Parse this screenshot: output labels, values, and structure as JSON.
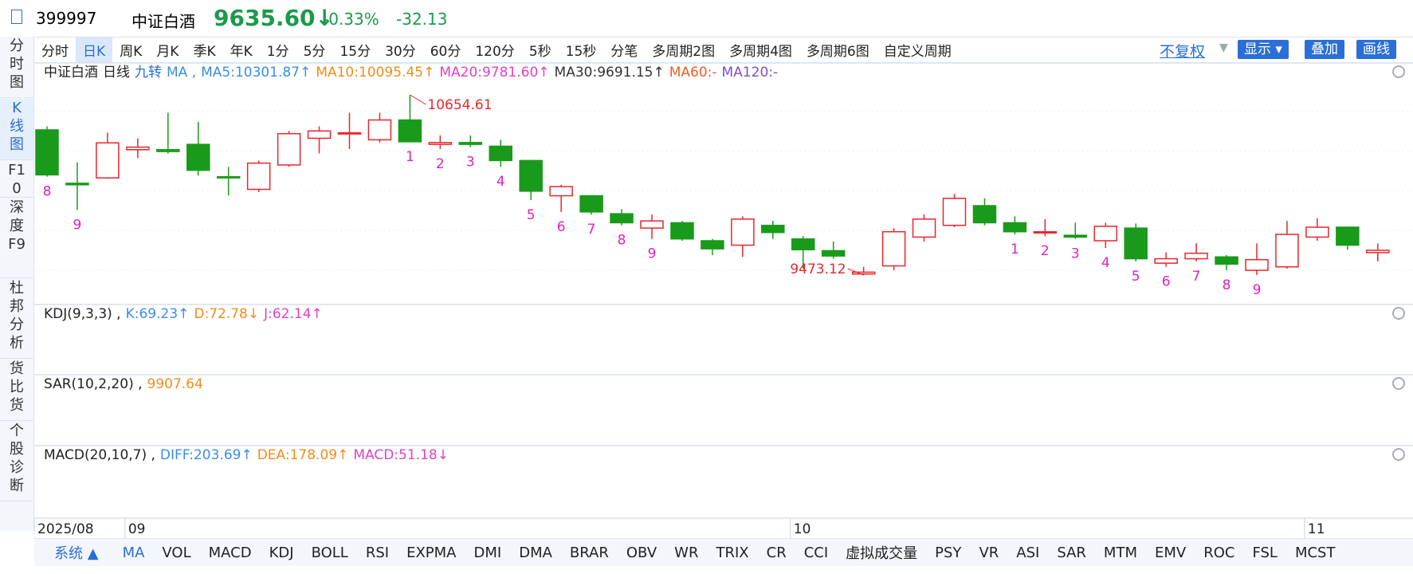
{
  "header": {
    "code": "399997",
    "name": "中证白酒",
    "price": "9635.60↓",
    "change_pct": "-0.33%",
    "change": "-32.13"
  },
  "side_tabs": [
    "分时图",
    "K线图",
    "F10",
    "深度F9",
    "杜邦分析",
    "货比货",
    "个股诊断"
  ],
  "period_tabs": [
    "分时",
    "日K",
    "周K",
    "月K",
    "季K",
    "年K",
    "1分",
    "5分",
    "15分",
    "30分",
    "60分",
    "120分",
    "5秒",
    "15秒",
    "分笔",
    "多周期2图",
    "多周期4图",
    "多周期6图",
    "自定义周期"
  ],
  "right_controls": {
    "adjust": "不复权",
    "show": "显示",
    "overlay": "叠加",
    "draw": "画线"
  },
  "main_legend": {
    "name": "中证白酒",
    "period": "日线",
    "td": "九转",
    "ma": "MA ,",
    "items": [
      {
        "text": "MA5:10301.87↑",
        "color": "#3a8ee6"
      },
      {
        "text": "MA10:10095.45↑",
        "color": "#f08c1a"
      },
      {
        "text": "MA20:9781.60↑",
        "color": "#e040c8"
      },
      {
        "text": "MA30:9691.15↑",
        "color": "#333333"
      },
      {
        "text": "MA60:-",
        "color": "#f05a28"
      },
      {
        "text": "MA120:-",
        "color": "#7a4fc8"
      }
    ]
  },
  "chart_data": {
    "type": "candlestick",
    "up_color": "#e8262b",
    "down_color": "#1a9a1a",
    "open": [
      10425,
      10075,
      10110,
      10295,
      10295,
      10330,
      10118,
      10035,
      10195,
      10370,
      10400,
      10360,
      10490,
      10330,
      10342,
      10318,
      10224,
      9993,
      9993,
      9875,
      9781,
      9816,
      9698,
      9669,
      9799,
      9710,
      9633,
      9480,
      9533,
      9722,
      9799,
      9928,
      9816,
      9752,
      9734,
      9698,
      9781,
      9551,
      9580,
      9592,
      9504,
      9527,
      9722,
      9787,
      9620
    ],
    "close": [
      10130,
      10065,
      10340,
      10312,
      10283,
      10160,
      10112,
      10207,
      10400,
      10418,
      10406,
      10490,
      10347,
      10342,
      10330,
      10224,
      10023,
      10053,
      9887,
      9816,
      9828,
      9710,
      9645,
      9840,
      9752,
      9639,
      9598,
      9492,
      9757,
      9840,
      9976,
      9816,
      9757,
      9757,
      9722,
      9793,
      9580,
      9580,
      9616,
      9545,
      9574,
      9740,
      9787,
      9669,
      9635.6
    ],
    "high": [
      10448,
      10212,
      10407,
      10370,
      10537,
      10478,
      10182,
      10224,
      10418,
      10448,
      10537,
      10537,
      10654.61,
      10389,
      10389,
      10360,
      10224,
      10065,
      9993,
      9905,
      9870,
      9828,
      9710,
      9858,
      9828,
      9728,
      9693,
      9527,
      9781,
      9870,
      10005,
      9976,
      9858,
      9840,
      9816,
      9816,
      9811,
      9622,
      9681,
      9604,
      9681,
      9828,
      9846,
      9787,
      9680
    ],
    "low": [
      10118,
      9900,
      10105,
      10240,
      10270,
      10125,
      9995,
      10017,
      10183,
      10271,
      10300,
      10342,
      10347,
      10300,
      10312,
      10183,
      9964,
      9887,
      9870,
      9799,
      9710,
      9698,
      9604,
      9592,
      9710,
      9515,
      9580,
      9473.12,
      9504,
      9693,
      9787,
      9799,
      9740,
      9728,
      9710,
      9651,
      9563,
      9527,
      9563,
      9504,
      9474,
      9515,
      9698,
      9639,
      9563
    ],
    "annotations": [
      {
        "index": 12,
        "value": 10654.61
      },
      {
        "index": 27,
        "value": 9473.12
      }
    ],
    "td_marks": [
      {
        "index": 0,
        "label": "8"
      },
      {
        "index": 1,
        "label": "9"
      },
      {
        "index": 12,
        "label": "1"
      },
      {
        "index": 13,
        "label": "2"
      },
      {
        "index": 14,
        "label": "3"
      },
      {
        "index": 15,
        "label": "4"
      },
      {
        "index": 16,
        "label": "5"
      },
      {
        "index": 17,
        "label": "6"
      },
      {
        "index": 18,
        "label": "7"
      },
      {
        "index": 19,
        "label": "8"
      },
      {
        "index": 20,
        "label": "9"
      },
      {
        "index": 32,
        "label": "1"
      },
      {
        "index": 33,
        "label": "2"
      },
      {
        "index": 34,
        "label": "3"
      },
      {
        "index": 35,
        "label": "4"
      },
      {
        "index": 36,
        "label": "5"
      },
      {
        "index": 37,
        "label": "6"
      },
      {
        "index": 38,
        "label": "7"
      },
      {
        "index": 39,
        "label": "8"
      },
      {
        "index": 40,
        "label": "9"
      }
    ],
    "date_labels": [
      {
        "index": 0,
        "label": "2025/08"
      },
      {
        "index": 3,
        "label": "09"
      },
      {
        "index": 25,
        "label": "10"
      },
      {
        "index": 42,
        "label": "11"
      }
    ]
  },
  "indicators": [
    {
      "title": "KDJ(9,3,3) ,",
      "items": [
        {
          "text": "K:69.23↑",
          "color": "#3a8ee6"
        },
        {
          "text": "D:72.78↓",
          "color": "#f08c1a"
        },
        {
          "text": "J:62.14↑",
          "color": "#e040c8"
        }
      ]
    },
    {
      "title": "SAR(10,2,20) ,",
      "items": [
        {
          "text": "9907.64",
          "color": "#f08c1a"
        }
      ]
    },
    {
      "title": "MACD(20,10,7) ,",
      "items": [
        {
          "text": "DIFF:203.69↑",
          "color": "#3a8ee6"
        },
        {
          "text": "DEA:178.09↑",
          "color": "#f08c1a"
        },
        {
          "text": "MACD:51.18↓",
          "color": "#e040c8"
        }
      ]
    }
  ],
  "bottom_tabs": {
    "system": "系统 ▲",
    "items": [
      "MA",
      "VOL",
      "MACD",
      "KDJ",
      "BOLL",
      "RSI",
      "EXPMA",
      "DMI",
      "DMA",
      "BRAR",
      "OBV",
      "WR",
      "TRIX",
      "CR",
      "CCI",
      "虚拟成交量",
      "PSY",
      "VR",
      "ASI",
      "SAR",
      "MTM",
      "EMV",
      "ROC",
      "FSL",
      "MCST"
    ]
  }
}
